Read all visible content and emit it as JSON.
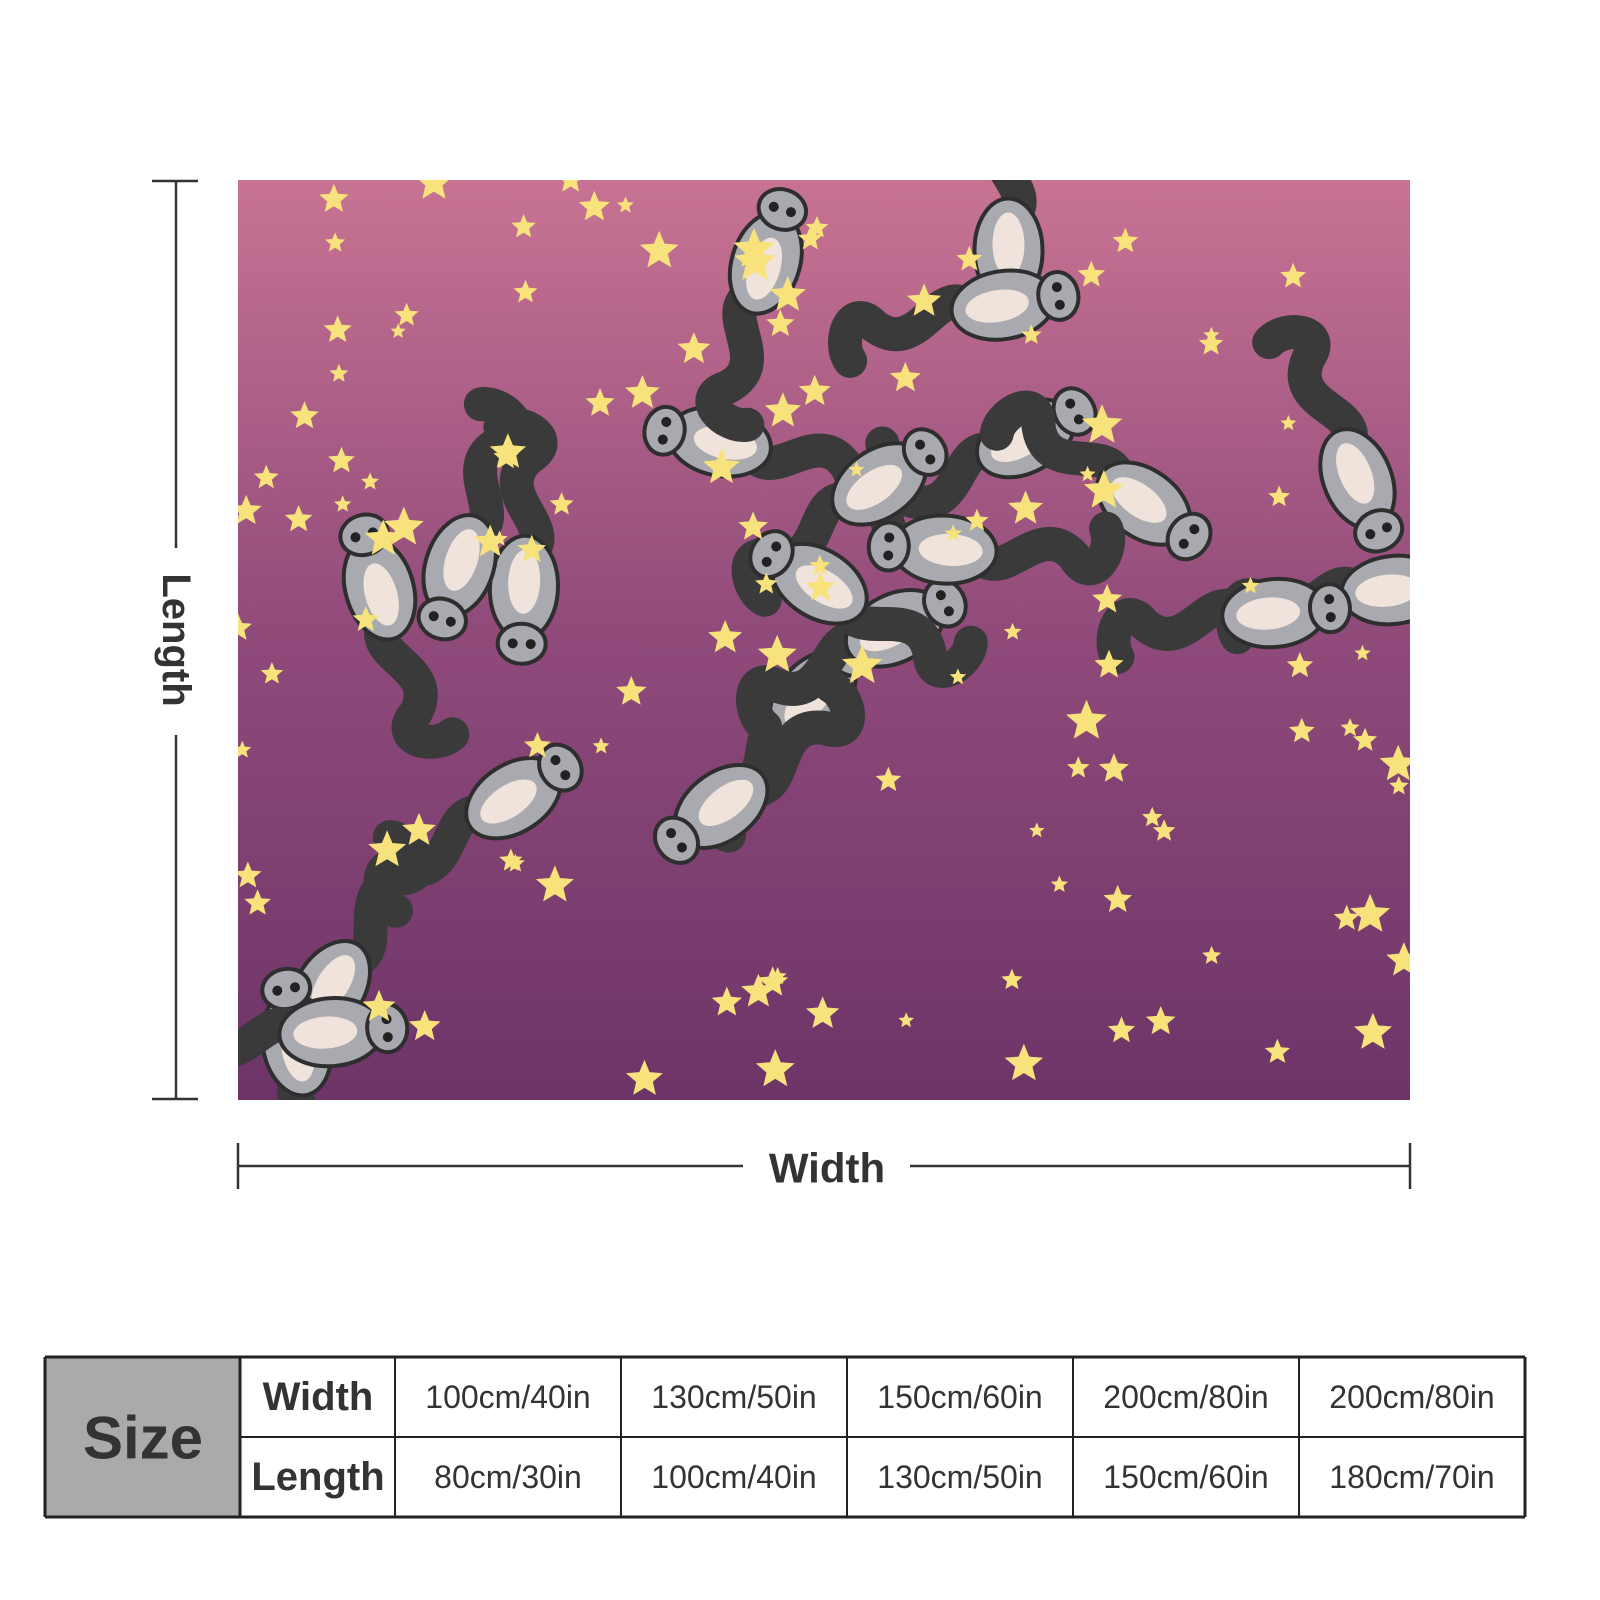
{
  "dimensions": {
    "length_label": "Length",
    "width_label": "Width"
  },
  "size_table": {
    "title": "Size",
    "rows": [
      {
        "header": "Width",
        "cells": [
          "100cm/40in",
          "130cm/50in",
          "150cm/60in",
          "200cm/80in",
          "200cm/80in"
        ]
      },
      {
        "header": "Length",
        "cells": [
          "80cm/30in",
          "100cm/40in",
          "130cm/50in",
          "150cm/60in",
          "180cm/70in"
        ]
      }
    ]
  }
}
